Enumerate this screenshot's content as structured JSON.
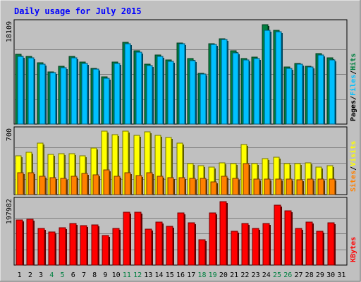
{
  "chart_data": {
    "type": "bar",
    "title": "Daily usage for July 2015",
    "categories": [
      "1",
      "2",
      "3",
      "4",
      "5",
      "6",
      "7",
      "8",
      "9",
      "10",
      "11",
      "12",
      "13",
      "14",
      "15",
      "16",
      "17",
      "18",
      "19",
      "20",
      "21",
      "22",
      "23",
      "24",
      "25",
      "26",
      "27",
      "28",
      "29",
      "30",
      "31"
    ],
    "weekend_days": [
      "4",
      "5",
      "11",
      "12",
      "18",
      "19",
      "25",
      "26"
    ],
    "panels": [
      {
        "id": "hits-files-pages",
        "max_label": "18109",
        "ylim": [
          0,
          18109
        ],
        "legend": [
          "Pages",
          "/",
          "Files",
          "/",
          "Hits"
        ],
        "series": [
          {
            "name": "Hits",
            "color": "#008040",
            "values": [
              12600,
              12200,
              11100,
              9500,
              10400,
              12200,
              11200,
              10100,
              8500,
              11200,
              14800,
              13300,
              10800,
              12500,
              11600,
              14700,
              11900,
              9200,
              14600,
              15400,
              13200,
              11900,
              12100,
              18000,
              17000,
              10300,
              11000,
              10500,
              12800,
              12000,
              0
            ]
          },
          {
            "name": "Files",
            "color": "#00c0ff",
            "values": [
              12200,
              12000,
              10900,
              9300,
              10200,
              12000,
              11000,
              9900,
              8300,
              11000,
              14500,
              13000,
              10600,
              12300,
              11400,
              14600,
              11500,
              9000,
              14400,
              15300,
              12900,
              11600,
              11800,
              17000,
              16700,
              10100,
              10800,
              10300,
              12500,
              11600,
              0
            ]
          }
        ]
      },
      {
        "id": "visits-sites",
        "max_label": "700",
        "ylim": [
          0,
          700
        ],
        "legend": [
          "Sites",
          "/",
          "Visits"
        ],
        "series": [
          {
            "name": "Visits",
            "color": "#ffff00",
            "values": [
              430,
              470,
              570,
              440,
              450,
              450,
              430,
              510,
              700,
              660,
              700,
              650,
              690,
              650,
              630,
              570,
              340,
              320,
              300,
              350,
              340,
              550,
              340,
              400,
              410,
              340,
              340,
              350,
              300,
              320,
              0
            ]
          },
          {
            "name": "Sites",
            "color": "#ff8000",
            "values": [
              240,
              240,
              200,
              190,
              180,
              200,
              230,
              220,
              270,
              200,
              240,
              210,
              240,
              200,
              190,
              190,
              180,
              180,
              140,
              200,
              180,
              340,
              170,
              170,
              170,
              170,
              160,
              170,
              170,
              170,
              0
            ]
          }
        ]
      },
      {
        "id": "kbytes",
        "max_label": "197982",
        "ylim": [
          0,
          197982
        ],
        "legend": [
          "KBytes"
        ],
        "series": [
          {
            "name": "KBytes",
            "color": "#ff0000",
            "values": [
              140000,
              142000,
              115000,
              104000,
              116000,
              130000,
              123000,
              125000,
              92000,
              115000,
              165000,
              165000,
              113000,
              135000,
              120000,
              162000,
              131000,
              79000,
              162000,
              197982,
              106000,
              129000,
              115000,
              130000,
              186000,
              170000,
              115000,
              134000,
              106000,
              131000,
              0
            ]
          }
        ]
      }
    ]
  }
}
